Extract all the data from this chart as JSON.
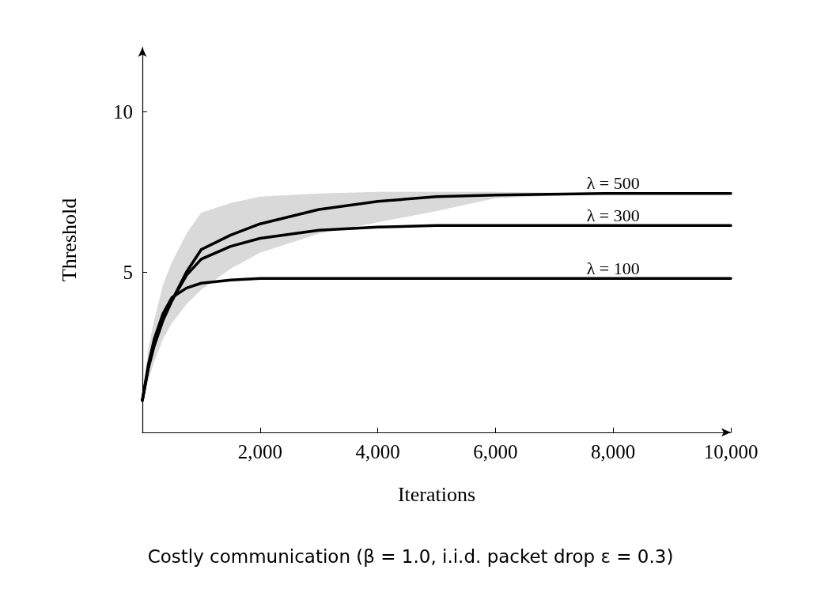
{
  "chart_data": {
    "type": "line",
    "subtitle": "Costly communication (β = 1.0, i.i.d. packet drop ε = 0.3)",
    "xlabel": "Iterations",
    "ylabel": "Threshold",
    "x": [
      0,
      100,
      200,
      350,
      500,
      750,
      1000,
      1500,
      2000,
      3000,
      4000,
      5000,
      6000,
      8000,
      10000
    ],
    "series": [
      {
        "name": "λ = 500",
        "color": "#000000",
        "values": [
          1.0,
          2.0,
          2.7,
          3.5,
          4.1,
          5.0,
          5.7,
          6.15,
          6.5,
          6.95,
          7.2,
          7.35,
          7.4,
          7.45,
          7.45
        ],
        "lower": [
          1.0,
          1.6,
          2.2,
          2.9,
          3.4,
          4.0,
          4.45,
          5.1,
          5.6,
          6.2,
          6.55,
          6.9,
          7.3,
          7.45,
          7.45
        ],
        "upper": [
          1.0,
          2.6,
          3.5,
          4.6,
          5.3,
          6.2,
          6.85,
          7.15,
          7.35,
          7.45,
          7.5,
          7.5,
          7.5,
          7.45,
          7.45
        ]
      },
      {
        "name": "λ = 300",
        "color": "#000000",
        "values": [
          1.0,
          2.0,
          2.7,
          3.5,
          4.1,
          4.9,
          5.4,
          5.8,
          6.05,
          6.3,
          6.4,
          6.45,
          6.45,
          6.45,
          6.45
        ]
      },
      {
        "name": "λ = 100",
        "color": "#000000",
        "values": [
          1.0,
          2.1,
          2.9,
          3.7,
          4.2,
          4.5,
          4.65,
          4.75,
          4.8,
          4.8,
          4.8,
          4.8,
          4.8,
          4.8,
          4.8
        ]
      }
    ],
    "xlim": [
      0,
      10000
    ],
    "xticks": [
      {
        "value": 2000,
        "label": "2,000"
      },
      {
        "value": 4000,
        "label": "4,000"
      },
      {
        "value": 6000,
        "label": "6,000"
      },
      {
        "value": 8000,
        "label": "8,000"
      },
      {
        "value": 10000,
        "label": "10,000"
      }
    ],
    "ylim": [
      0,
      12
    ],
    "yticks": [
      5,
      10
    ],
    "grid": false,
    "legend": false,
    "marker": "none",
    "line_style": "solid"
  }
}
